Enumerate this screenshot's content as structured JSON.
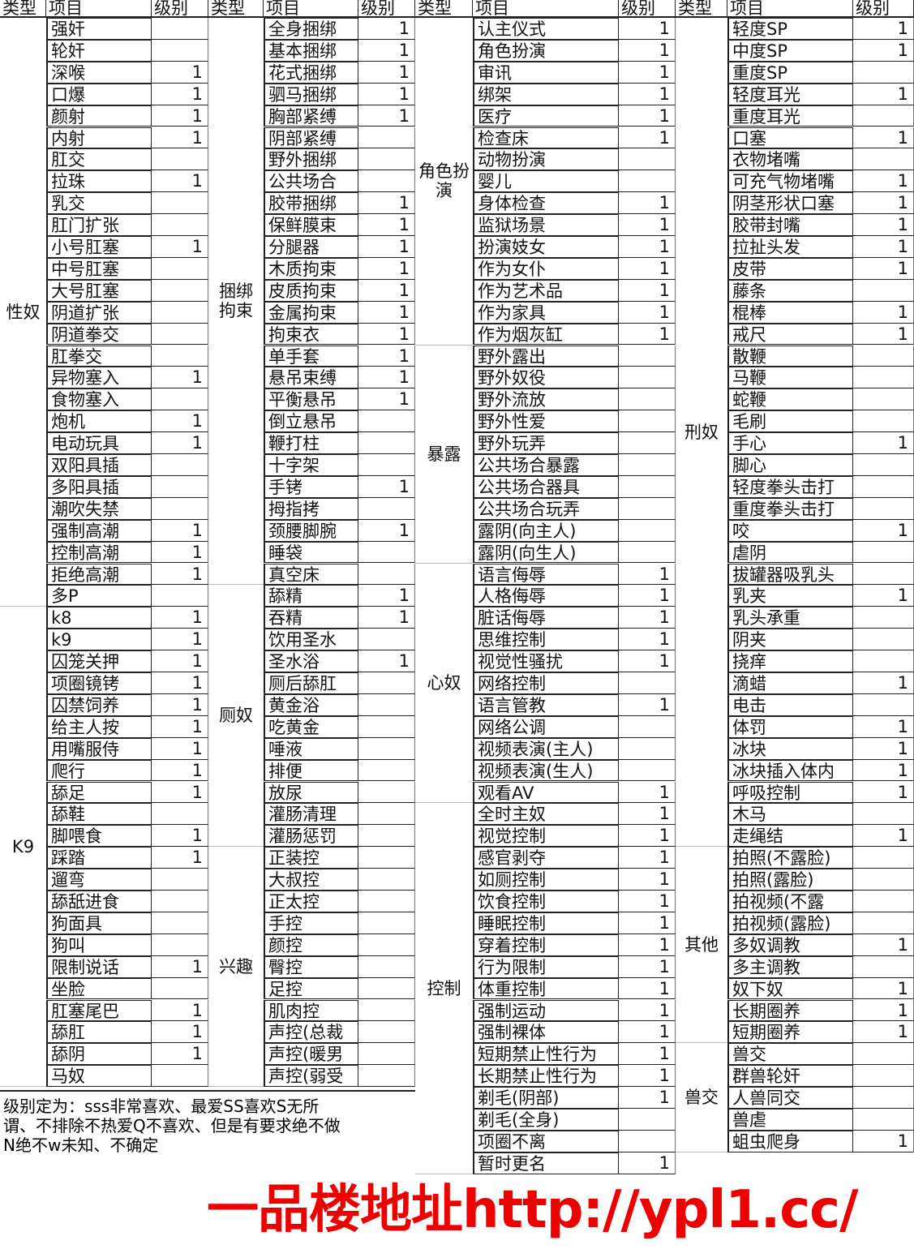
{
  "headers": {
    "type": "类型",
    "item": "项目",
    "level": "级别"
  },
  "columns": [
    [
      {
        "type": "性奴",
        "items": [
          [
            "强奸",
            ""
          ],
          [
            "轮奸",
            ""
          ],
          [
            "深喉",
            "1"
          ],
          [
            "口爆",
            "1"
          ],
          [
            "颜射",
            "1"
          ],
          [
            "内射",
            "1"
          ],
          [
            "肛交",
            ""
          ],
          [
            "拉珠",
            "1"
          ],
          [
            "乳交",
            ""
          ],
          [
            "肛门扩张",
            ""
          ],
          [
            "小号肛塞",
            "1"
          ],
          [
            "中号肛塞",
            ""
          ],
          [
            "大号肛塞",
            ""
          ],
          [
            "阴道扩张",
            ""
          ],
          [
            "阴道拳交",
            ""
          ],
          [
            "肛拳交",
            ""
          ],
          [
            "异物塞入",
            "1"
          ],
          [
            "食物塞入",
            ""
          ],
          [
            "炮机",
            "1"
          ],
          [
            "电动玩具",
            "1"
          ],
          [
            "双阳具插",
            ""
          ],
          [
            "多阳具插",
            ""
          ],
          [
            "潮吹失禁",
            ""
          ],
          [
            "强制高潮",
            "1"
          ],
          [
            "控制高潮",
            "1"
          ],
          [
            "拒绝高潮",
            "1"
          ],
          [
            "多P",
            ""
          ]
        ]
      },
      {
        "type": "K9",
        "items": [
          [
            "k8",
            "1"
          ],
          [
            "k9",
            "1"
          ],
          [
            "囚笼关押",
            "1"
          ],
          [
            "项圈镜铐",
            "1"
          ],
          [
            "囚禁饲养",
            "1"
          ],
          [
            "给主人按",
            "1"
          ],
          [
            "用嘴服侍",
            "1"
          ],
          [
            "爬行",
            "1"
          ],
          [
            "舔足",
            "1"
          ],
          [
            "舔鞋",
            ""
          ],
          [
            "脚喂食",
            "1"
          ],
          [
            "踩踏",
            "1"
          ],
          [
            "遛弯",
            ""
          ],
          [
            "舔舐进食",
            ""
          ],
          [
            "狗面具",
            ""
          ],
          [
            "狗叫",
            ""
          ],
          [
            "限制说话",
            "1"
          ],
          [
            "坐脸",
            ""
          ],
          [
            "肛塞尾巴",
            "1"
          ],
          [
            "舔肛",
            "1"
          ],
          [
            "舔阴",
            "1"
          ],
          [
            "马奴",
            ""
          ]
        ]
      }
    ],
    [
      {
        "type": "捆绑拘束",
        "items": [
          [
            "全身捆绑",
            "1"
          ],
          [
            "基本捆绑",
            "1"
          ],
          [
            "花式捆绑",
            "1"
          ],
          [
            "驷马捆绑",
            "1"
          ],
          [
            "胸部紧缚",
            "1"
          ],
          [
            "阴部紧缚",
            ""
          ],
          [
            "野外捆绑",
            ""
          ],
          [
            "公共场合",
            ""
          ],
          [
            "胶带捆绑",
            "1"
          ],
          [
            "保鲜膜束",
            "1"
          ],
          [
            "分腿器",
            "1"
          ],
          [
            "木质拘束",
            "1"
          ],
          [
            "皮质拘束",
            "1"
          ],
          [
            "金属拘束",
            "1"
          ],
          [
            "拘束衣",
            "1"
          ],
          [
            "单手套",
            "1"
          ],
          [
            "悬吊束缚",
            "1"
          ],
          [
            "平衡悬吊",
            "1"
          ],
          [
            "倒立悬吊",
            ""
          ],
          [
            "鞭打柱",
            ""
          ],
          [
            "十字架",
            ""
          ],
          [
            "手铐",
            "1"
          ],
          [
            "拇指拷",
            ""
          ],
          [
            "颈腰脚腕",
            "1"
          ],
          [
            "睡袋",
            ""
          ],
          [
            "真空床",
            ""
          ]
        ]
      },
      {
        "type": "厕奴",
        "items": [
          [
            "舔精",
            "1"
          ],
          [
            "吞精",
            "1"
          ],
          [
            "饮用圣水",
            ""
          ],
          [
            "圣水浴",
            "1"
          ],
          [
            "厕后舔肛",
            ""
          ],
          [
            "黄金浴",
            ""
          ],
          [
            "吃黄金",
            ""
          ],
          [
            "唾液",
            ""
          ],
          [
            "排便",
            ""
          ],
          [
            "放尿",
            ""
          ],
          [
            "灌肠清理",
            ""
          ],
          [
            "灌肠惩罚",
            ""
          ]
        ]
      },
      {
        "type": "兴趣",
        "items": [
          [
            "正装控",
            ""
          ],
          [
            "大叔控",
            ""
          ],
          [
            "正太控",
            ""
          ],
          [
            "手控",
            ""
          ],
          [
            "颜控",
            ""
          ],
          [
            "臀控",
            ""
          ],
          [
            "足控",
            ""
          ],
          [
            "肌肉控",
            ""
          ],
          [
            "声控(总裁",
            ""
          ],
          [
            "声控(暖男",
            ""
          ],
          [
            "声控(弱受",
            ""
          ]
        ]
      }
    ],
    [
      {
        "type": "角色扮演",
        "items": [
          [
            "认主仪式",
            "1"
          ],
          [
            "角色扮演",
            "1"
          ],
          [
            "审讯",
            "1"
          ],
          [
            "绑架",
            "1"
          ],
          [
            "医疗",
            "1"
          ],
          [
            "检查床",
            "1"
          ],
          [
            "动物扮演",
            ""
          ],
          [
            "婴儿",
            ""
          ],
          [
            "身体检查",
            "1"
          ],
          [
            "监狱场景",
            "1"
          ],
          [
            "扮演妓女",
            "1"
          ],
          [
            "作为女仆",
            "1"
          ],
          [
            "作为艺术品",
            "1"
          ],
          [
            "作为家具",
            "1"
          ],
          [
            "作为烟灰缸",
            "1"
          ]
        ]
      },
      {
        "type": "暴露",
        "items": [
          [
            "野外露出",
            ""
          ],
          [
            "野外奴役",
            ""
          ],
          [
            "野外流放",
            ""
          ],
          [
            "野外性爱",
            ""
          ],
          [
            "野外玩弄",
            ""
          ],
          [
            "公共场合暴露",
            ""
          ],
          [
            "公共场合器具",
            ""
          ],
          [
            "公共场合玩弄",
            ""
          ],
          [
            "露阴(向主人)",
            ""
          ],
          [
            "露阴(向生人)",
            ""
          ]
        ]
      },
      {
        "type": "心奴",
        "items": [
          [
            "语言侮辱",
            "1"
          ],
          [
            "人格侮辱",
            "1"
          ],
          [
            "脏话侮辱",
            "1"
          ],
          [
            "思维控制",
            "1"
          ],
          [
            "视觉性骚扰",
            "1"
          ],
          [
            "网络控制",
            ""
          ],
          [
            "语言管教",
            "1"
          ],
          [
            "网络公调",
            ""
          ],
          [
            "视频表演(主人)",
            ""
          ],
          [
            "视频表演(生人)",
            ""
          ],
          [
            "观看AV",
            "1"
          ]
        ]
      },
      {
        "type": "控制",
        "items": [
          [
            "全时主奴",
            "1"
          ],
          [
            "视觉控制",
            "1"
          ],
          [
            "感官剥夺",
            "1"
          ],
          [
            "如厕控制",
            "1"
          ],
          [
            "饮食控制",
            "1"
          ],
          [
            "睡眠控制",
            "1"
          ],
          [
            "穿着控制",
            "1"
          ],
          [
            "行为限制",
            "1"
          ],
          [
            "体重控制",
            "1"
          ],
          [
            "强制运动",
            "1"
          ],
          [
            "强制裸体",
            "1"
          ],
          [
            "短期禁止性行为",
            "1"
          ],
          [
            "长期禁止性行为",
            "1"
          ],
          [
            "剃毛(阴部)",
            "1"
          ],
          [
            "剃毛(全身)",
            ""
          ],
          [
            "项圈不离",
            ""
          ],
          [
            "暂时更名",
            "1"
          ]
        ]
      }
    ],
    [
      {
        "type": "刑奴",
        "items": [
          [
            "轻度SP",
            "1"
          ],
          [
            "中度SP",
            "1"
          ],
          [
            "重度SP",
            ""
          ],
          [
            "轻度耳光",
            "1"
          ],
          [
            "重度耳光",
            ""
          ],
          [
            "口塞",
            "1"
          ],
          [
            "衣物堵嘴",
            ""
          ],
          [
            "可充气物堵嘴",
            "1"
          ],
          [
            "阴茎形状口塞",
            "1"
          ],
          [
            "胶带封嘴",
            "1"
          ],
          [
            "拉扯头发",
            "1"
          ],
          [
            "皮带",
            "1"
          ],
          [
            "藤条",
            ""
          ],
          [
            "棍棒",
            "1"
          ],
          [
            "戒尺",
            "1"
          ],
          [
            "散鞭",
            ""
          ],
          [
            "马鞭",
            ""
          ],
          [
            "蛇鞭",
            ""
          ],
          [
            "毛刷",
            ""
          ],
          [
            "手心",
            "1"
          ],
          [
            "脚心",
            ""
          ],
          [
            "轻度拳头击打",
            ""
          ],
          [
            "重度拳头击打",
            ""
          ],
          [
            "咬",
            "1"
          ],
          [
            "虐阴",
            ""
          ],
          [
            "拔罐器吸乳头",
            ""
          ],
          [
            "乳夹",
            "1"
          ],
          [
            "乳头承重",
            ""
          ],
          [
            "阴夹",
            ""
          ],
          [
            "挠痒",
            ""
          ],
          [
            "滴蜡",
            "1"
          ],
          [
            "电击",
            ""
          ],
          [
            "体罚",
            "1"
          ],
          [
            "冰块",
            "1"
          ],
          [
            "冰块插入体内",
            "1"
          ],
          [
            "呼吸控制",
            "1"
          ],
          [
            "木马",
            ""
          ],
          [
            "走绳结",
            "1"
          ]
        ]
      },
      {
        "type": "其他",
        "items": [
          [
            "拍照(不露脸)",
            ""
          ],
          [
            "拍照(露脸)",
            ""
          ],
          [
            "拍视频(不露",
            ""
          ],
          [
            "拍视频(露脸)",
            ""
          ],
          [
            "多奴调教",
            "1"
          ],
          [
            "多主调教",
            ""
          ],
          [
            "奴下奴",
            "1"
          ],
          [
            "长期圈养",
            "1"
          ],
          [
            "短期圈养",
            "1"
          ]
        ]
      },
      {
        "type": "兽交",
        "items": [
          [
            "兽交",
            ""
          ],
          [
            "群兽轮奸",
            ""
          ],
          [
            "人兽同交",
            ""
          ],
          [
            "兽虐",
            ""
          ],
          [
            "蛆虫爬身",
            "1"
          ]
        ]
      }
    ]
  ],
  "note": {
    "line1": "级别定为：sss非常喜欢、最爱SS喜欢S无所",
    "line2": "谓、不排除不热爱Q不喜欢、但是有要求绝不做",
    "line3": "N绝不w未知、不确定"
  },
  "watermark": "一品楼地址http://ypl1.cc/"
}
